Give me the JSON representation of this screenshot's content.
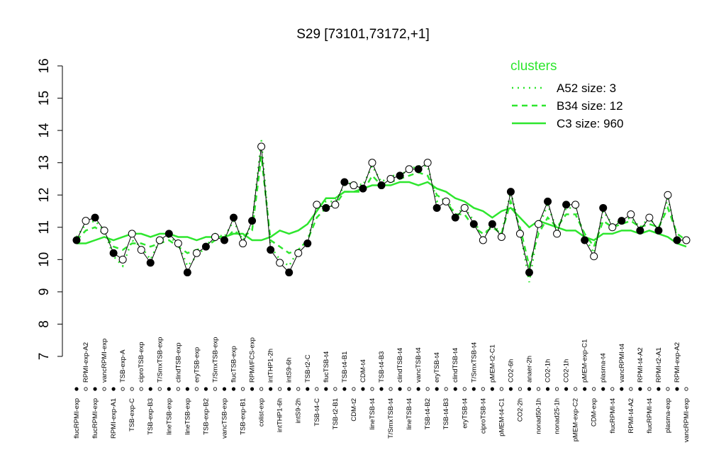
{
  "chart_data": {
    "type": "line",
    "title": "S29 [73101,73172,+1]",
    "categories": [
      "flucRPMI-exp",
      "RPMI-exp-A2",
      "flucRPMI-exp",
      "vancRPMI-exp",
      "RPMI-exp-A1",
      "TSB-exp-A",
      "TSB-exp-C",
      "ciproTSB-exp",
      "TSB-exp-B3",
      "T/SmxTSB-exp",
      "lineTSB-exp",
      "clindTSB-exp",
      "lineTSB-exp",
      "eryTSB-exp",
      "TSB-exp-B2",
      "T/SmxTSB-exp",
      "vancTSB-exp",
      "flucTSB-exp",
      "TSB-exp-B1",
      "RPMI/FCS-exp",
      "colist-exp",
      "intTHP1-2h",
      "intTHP1-6h",
      "intS9-6h",
      "intS9-2h",
      "TSB-t2-C",
      "TSB-t4-C",
      "flucTSB-t4",
      "TSB-t2-B1",
      "TSB-t4-B1",
      "CDM-t2",
      "CDM-t4",
      "lineTSB-t4",
      "TSB-t4-B3",
      "T/SmxTSB-t4",
      "clindTSB-t4",
      "lineTSB-t4",
      "vancTSB-t4",
      "TSB-t4-B2",
      "eryTSB-t4",
      "TSB-t4-B3",
      "clindTSB-t4",
      "eryTSB-t4",
      "T/SmxTSB-t4",
      "ciproTSB-t4",
      "pMEM-t2-C1",
      "pMEM-t4-C1",
      "CO2-6h",
      "CO2-2h",
      "anaer-2h",
      "nonad50-1h",
      "CO2-1h",
      "nonad25-1h",
      "CO2-1h",
      "pMEM-exp-C2",
      "pMEM-exp-C1",
      "CDM-exp",
      "plasma-t4",
      "flucRPMI-t4",
      "vancRPMI-t4",
      "RPMI-t4-A2",
      "RPMI-t4-A2",
      "flucRPMI-t4",
      "RPMI-t2-A1",
      "plasma-exp",
      "RPMI-exp-A2",
      "vancRPMI-exp"
    ],
    "values": [
      10.6,
      11.2,
      11.3,
      10.9,
      10.2,
      10.0,
      10.8,
      10.3,
      9.9,
      10.6,
      10.8,
      10.5,
      9.6,
      10.2,
      10.4,
      10.7,
      10.6,
      11.3,
      10.5,
      11.2,
      13.5,
      10.3,
      9.9,
      9.6,
      10.2,
      10.5,
      11.7,
      11.6,
      11.7,
      12.4,
      12.3,
      12.2,
      13.0,
      12.3,
      12.5,
      12.6,
      12.8,
      12.8,
      13.0,
      11.6,
      11.8,
      11.3,
      11.6,
      11.1,
      10.6,
      11.1,
      10.7,
      12.1,
      10.8,
      9.6,
      11.1,
      11.8,
      10.8,
      11.7,
      11.7,
      10.6,
      10.1,
      11.6,
      11.0,
      11.2,
      11.4,
      10.9,
      11.3,
      10.9,
      12.0,
      10.6,
      10.6
    ],
    "fills": [
      "#000000",
      "#ffffff",
      "#000000",
      "#ffffff",
      "#000000",
      "#ffffff",
      "#ffffff",
      "#ffffff",
      "#000000",
      "#ffffff",
      "#000000",
      "#ffffff",
      "#000000",
      "#ffffff",
      "#000000",
      "#ffffff",
      "#000000",
      "#000000",
      "#ffffff",
      "#000000",
      "#ffffff",
      "#000000",
      "#ffffff",
      "#000000",
      "#ffffff",
      "#000000",
      "#ffffff",
      "#000000",
      "#ffffff",
      "#000000",
      "#ffffff",
      "#000000",
      "#ffffff",
      "#000000",
      "#ffffff",
      "#000000",
      "#ffffff",
      "#000000",
      "#ffffff",
      "#000000",
      "#ffffff",
      "#000000",
      "#ffffff",
      "#000000",
      "#ffffff",
      "#000000",
      "#ffffff",
      "#000000",
      "#ffffff",
      "#000000",
      "#ffffff",
      "#000000",
      "#ffffff",
      "#000000",
      "#ffffff",
      "#000000",
      "#ffffff",
      "#000000",
      "#ffffff",
      "#000000",
      "#ffffff",
      "#000000",
      "#ffffff",
      "#000000",
      "#ffffff",
      "#000000",
      "#ffffff"
    ],
    "legend_title": "clusters",
    "series": [
      {
        "name": "A52 size: 3",
        "color": "#2ee62e",
        "dash": "2,6",
        "values": [
          10.7,
          11.1,
          11.2,
          10.9,
          10.1,
          9.8,
          10.6,
          10.4,
          10.0,
          10.6,
          10.7,
          10.5,
          9.8,
          10.1,
          10.4,
          10.8,
          10.7,
          11.2,
          10.6,
          11.1,
          13.7,
          10.4,
          10.0,
          9.8,
          10.3,
          10.6,
          11.6,
          11.8,
          11.8,
          12.3,
          12.4,
          12.3,
          12.9,
          12.4,
          12.6,
          12.6,
          12.8,
          12.9,
          12.9,
          11.8,
          11.9,
          11.4,
          11.6,
          11.2,
          10.7,
          11.1,
          10.8,
          12.1,
          10.9,
          9.3,
          11.0,
          11.7,
          10.9,
          11.6,
          11.6,
          10.7,
          10.2,
          11.5,
          11.1,
          11.2,
          11.3,
          11.0,
          11.3,
          10.9,
          11.9,
          10.7,
          10.6
        ]
      },
      {
        "name": "B34 size: 12",
        "color": "#2ee62e",
        "dash": "8,6",
        "values": [
          10.6,
          10.9,
          11.0,
          10.8,
          10.4,
          10.3,
          10.5,
          10.5,
          10.4,
          10.5,
          10.6,
          10.4,
          10.2,
          10.3,
          10.4,
          10.6,
          10.6,
          10.9,
          10.7,
          10.9,
          13.2,
          10.6,
          10.4,
          10.2,
          10.3,
          10.6,
          11.3,
          11.6,
          11.7,
          12.1,
          12.1,
          12.1,
          12.6,
          12.3,
          12.4,
          12.5,
          12.6,
          12.7,
          12.6,
          12.0,
          11.8,
          11.4,
          11.4,
          11.0,
          10.8,
          11.0,
          10.8,
          11.8,
          11.0,
          9.8,
          10.8,
          11.3,
          11.0,
          11.4,
          11.4,
          10.8,
          10.4,
          11.2,
          11.0,
          11.1,
          11.2,
          11.0,
          11.1,
          11.0,
          11.6,
          10.8,
          10.6
        ]
      },
      {
        "name": "C3 size: 960",
        "color": "#2ee62e",
        "dash": "none",
        "values": [
          10.5,
          10.5,
          10.6,
          10.7,
          10.6,
          10.7,
          10.8,
          10.8,
          10.7,
          10.8,
          10.8,
          10.7,
          10.7,
          10.6,
          10.7,
          10.7,
          10.7,
          10.8,
          10.8,
          10.6,
          10.6,
          10.7,
          10.9,
          10.8,
          10.9,
          11.1,
          11.5,
          11.9,
          11.9,
          12.1,
          12.1,
          12.2,
          12.3,
          12.3,
          12.3,
          12.4,
          12.4,
          12.3,
          12.4,
          12.2,
          12.1,
          11.9,
          11.8,
          11.6,
          11.5,
          11.3,
          11.5,
          11.6,
          11.3,
          11.0,
          11.2,
          11.1,
          11.0,
          10.9,
          10.9,
          10.7,
          10.6,
          10.8,
          10.8,
          10.9,
          10.9,
          10.8,
          10.9,
          10.8,
          10.7,
          10.5,
          10.4
        ]
      }
    ],
    "ylim": [
      7,
      16
    ],
    "yticks": [
      7,
      8,
      9,
      10,
      11,
      12,
      13,
      14,
      15,
      16
    ]
  }
}
